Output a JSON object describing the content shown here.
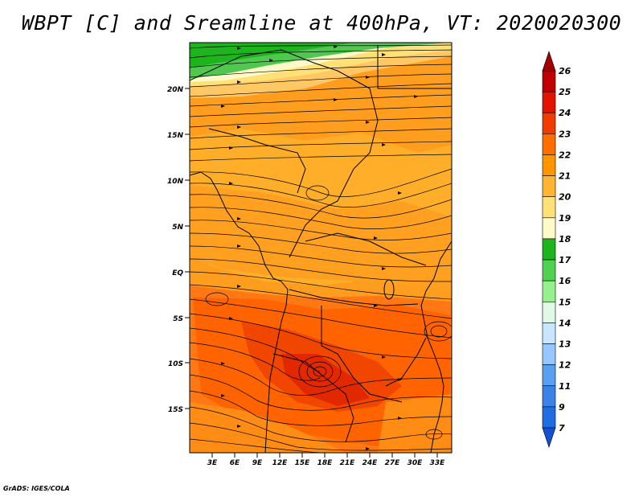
{
  "title": "WBPT [C] and Sreamline at 400hPa, VT: 2020020300",
  "credit": "GrADS: IGES/COLA",
  "map": {
    "lat_labels": [
      "20N",
      "15N",
      "10N",
      "5N",
      "EQ",
      "5S",
      "10S",
      "15S"
    ],
    "lon_labels": [
      "3E",
      "6E",
      "9E",
      "12E",
      "15E",
      "18E",
      "21E",
      "24E",
      "27E",
      "30E",
      "33E"
    ]
  },
  "colorbar": {
    "labels": [
      "26",
      "25",
      "24",
      "23",
      "22",
      "21",
      "20",
      "19",
      "18",
      "17",
      "16",
      "15",
      "14",
      "13",
      "12",
      "11",
      "9",
      "7"
    ],
    "colors": [
      "#a50000",
      "#c00000",
      "#e11400",
      "#f03c00",
      "#ff6e00",
      "#ff9600",
      "#ffb432",
      "#ffe178",
      "#fffac8",
      "#1eb41e",
      "#50d250",
      "#96f08c",
      "#e1fae6",
      "#c8e6ff",
      "#96c8ff",
      "#5aa0f0",
      "#3c82e6",
      "#1e6ee1",
      "#1450d2"
    ]
  }
}
